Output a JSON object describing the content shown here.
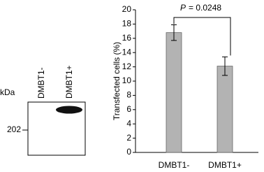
{
  "blot": {
    "unit": "kDa",
    "lanes": [
      "DMBT1-",
      "DMBT1+"
    ],
    "marker": "202"
  },
  "chart_data": {
    "type": "bar",
    "ylabel": "Transfected cells (%)",
    "categories": [
      "DMBT1-",
      "DMBT1+"
    ],
    "values": [
      16.8,
      12.1
    ],
    "errors": [
      1.1,
      1.3
    ],
    "color": "#b3b3b3",
    "ylim": [
      0,
      20
    ],
    "yticks": [
      0,
      2,
      4,
      6,
      8,
      10,
      12,
      14,
      16,
      18,
      20
    ],
    "annotation": {
      "symbol": "P",
      "text": "= 0.0248"
    }
  }
}
